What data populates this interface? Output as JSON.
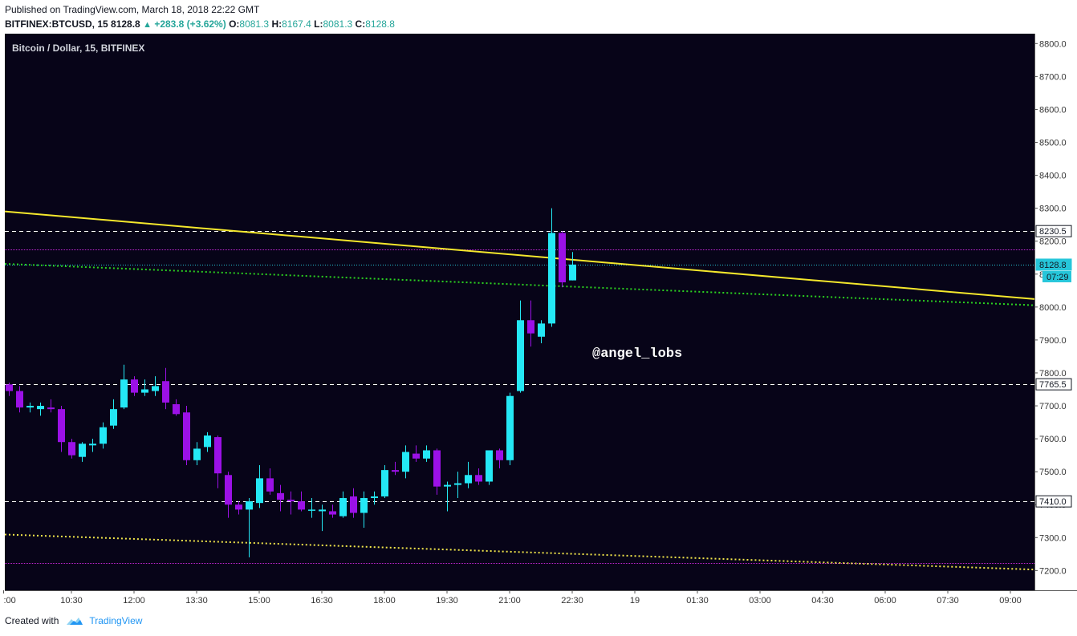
{
  "header": {
    "published": "Published on TradingView.com, March 18, 2018 22:22 GMT",
    "symbol": "BITFINEX:BTCUSD, 15",
    "last": "8128.8",
    "change": "+283.8 (+3.62%)",
    "o_label": "O:",
    "o_value": "8081.3",
    "h_label": "H:",
    "h_value": "8167.4",
    "l_label": "L:",
    "l_value": "8081.3",
    "c_label": "C:",
    "c_value": "8128.8"
  },
  "footer": {
    "created_with": "Created with",
    "brand": "TradingView",
    "brand_icon": "tradingview-cloud-icon"
  },
  "colors": {
    "background": "#070418",
    "up_candle": "#24e8f5",
    "down_candle": "#9b11e6",
    "trendline": "#f5e82c",
    "green_dotted": "#2bd11f",
    "yellow_dotted": "#f0e44a",
    "magenta_line": "#c026d3",
    "cyan_price_line": "#26c6da"
  },
  "chart_data": {
    "type": "candlestick",
    "title": "Bitcoin / Dollar, 15, BITFINEX",
    "watermark": "@angel_lobs",
    "ylim": [
      7140,
      8830
    ],
    "y_ticks": [
      "7200.0",
      "7300.0",
      "7400.0",
      "7500.0",
      "7600.0",
      "7700.0",
      "7800.0",
      "7900.0",
      "8000.0",
      "8100.0",
      "8200.0",
      "8300.0",
      "8400.0",
      "8500.0",
      "8600.0",
      "8700.0",
      "8800.0"
    ],
    "x_ticks": [
      {
        "label": ":00",
        "bar": -0.5
      },
      {
        "label": "10:30",
        "bar": 6
      },
      {
        "label": "12:00",
        "bar": 12
      },
      {
        "label": "13:30",
        "bar": 18
      },
      {
        "label": "15:00",
        "bar": 24
      },
      {
        "label": "16:30",
        "bar": 30
      },
      {
        "label": "18:00",
        "bar": 36
      },
      {
        "label": "19:30",
        "bar": 42
      },
      {
        "label": "21:00",
        "bar": 48
      },
      {
        "label": "22:30",
        "bar": 54
      },
      {
        "label": "19",
        "bar": 60
      },
      {
        "label": "01:30",
        "bar": 66
      },
      {
        "label": "03:00",
        "bar": 72
      },
      {
        "label": "04:30",
        "bar": 78
      },
      {
        "label": "06:00",
        "bar": 84
      },
      {
        "label": "07:30",
        "bar": 90
      },
      {
        "label": "09:00",
        "bar": 96
      }
    ],
    "candles": [
      [
        7765,
        7770,
        7730,
        7745
      ],
      [
        7745,
        7760,
        7680,
        7695
      ],
      [
        7695,
        7710,
        7680,
        7700
      ],
      [
        7690,
        7710,
        7670,
        7700
      ],
      [
        7695,
        7720,
        7680,
        7690
      ],
      [
        7690,
        7700,
        7560,
        7590
      ],
      [
        7590,
        7600,
        7540,
        7550
      ],
      [
        7545,
        7590,
        7530,
        7585
      ],
      [
        7580,
        7600,
        7560,
        7585
      ],
      [
        7585,
        7650,
        7570,
        7635
      ],
      [
        7640,
        7720,
        7630,
        7690
      ],
      [
        7695,
        7825,
        7690,
        7780
      ],
      [
        7780,
        7790,
        7730,
        7740
      ],
      [
        7740,
        7780,
        7730,
        7750
      ],
      [
        7745,
        7790,
        7730,
        7760
      ],
      [
        7775,
        7815,
        7690,
        7710
      ],
      [
        7705,
        7720,
        7670,
        7675
      ],
      [
        7680,
        7700,
        7520,
        7535
      ],
      [
        7535,
        7590,
        7520,
        7570
      ],
      [
        7575,
        7620,
        7560,
        7610
      ],
      [
        7605,
        7610,
        7450,
        7495
      ],
      [
        7490,
        7500,
        7360,
        7400
      ],
      [
        7400,
        7410,
        7370,
        7385
      ],
      [
        7385,
        7420,
        7240,
        7410
      ],
      [
        7405,
        7520,
        7390,
        7480
      ],
      [
        7480,
        7510,
        7430,
        7440
      ],
      [
        7435,
        7460,
        7380,
        7415
      ],
      [
        7415,
        7440,
        7370,
        7410
      ],
      [
        7410,
        7440,
        7380,
        7385
      ],
      [
        7385,
        7420,
        7360,
        7385
      ],
      [
        7380,
        7400,
        7320,
        7385
      ],
      [
        7380,
        7400,
        7360,
        7370
      ],
      [
        7365,
        7440,
        7360,
        7420
      ],
      [
        7425,
        7450,
        7360,
        7375
      ],
      [
        7375,
        7440,
        7330,
        7420
      ],
      [
        7420,
        7440,
        7400,
        7425
      ],
      [
        7425,
        7520,
        7420,
        7505
      ],
      [
        7505,
        7530,
        7490,
        7500
      ],
      [
        7500,
        7580,
        7480,
        7560
      ],
      [
        7555,
        7580,
        7530,
        7540
      ],
      [
        7540,
        7580,
        7530,
        7565
      ],
      [
        7565,
        7570,
        7430,
        7455
      ],
      [
        7455,
        7470,
        7380,
        7460
      ],
      [
        7460,
        7500,
        7420,
        7465
      ],
      [
        7465,
        7530,
        7450,
        7490
      ],
      [
        7490,
        7510,
        7460,
        7470
      ],
      [
        7470,
        7560,
        7460,
        7565
      ],
      [
        7565,
        7570,
        7510,
        7535
      ],
      [
        7535,
        7740,
        7520,
        7730
      ],
      [
        7745,
        8020,
        7740,
        7960
      ],
      [
        7960,
        8020,
        7880,
        7920
      ],
      [
        7910,
        7960,
        7890,
        7950
      ],
      [
        7950,
        8300,
        7940,
        8225
      ],
      [
        8225,
        8230,
        8060,
        8075
      ],
      [
        8081,
        8167,
        8081,
        8129
      ]
    ],
    "horizontal_levels": [
      {
        "value": 8230.5,
        "label": "8230.5",
        "style": "white-dashed"
      },
      {
        "value": 7765.5,
        "label": "7765.5",
        "style": "white-dashed"
      },
      {
        "value": 7410.0,
        "label": "7410.0",
        "style": "white-dashed"
      },
      {
        "value": 8128.8,
        "label": "8128.8",
        "style": "cyan-current-price"
      },
      {
        "value": 8175,
        "style": "magenta-thin"
      },
      {
        "value": 7222,
        "style": "magenta-thin"
      }
    ],
    "countdown_label": "07:29",
    "trendlines": [
      {
        "style": "yellow-solid",
        "from": {
          "bar": -1,
          "value": 8292
        },
        "to": {
          "bar": 101,
          "value": 8017
        }
      },
      {
        "style": "green-dotted",
        "from": {
          "bar": -1,
          "value": 8132
        },
        "to": {
          "bar": 101,
          "value": 8002
        }
      },
      {
        "style": "yellow-dotted",
        "from": {
          "bar": -1,
          "value": 7310
        },
        "to": {
          "bar": 101,
          "value": 7200
        }
      }
    ]
  }
}
